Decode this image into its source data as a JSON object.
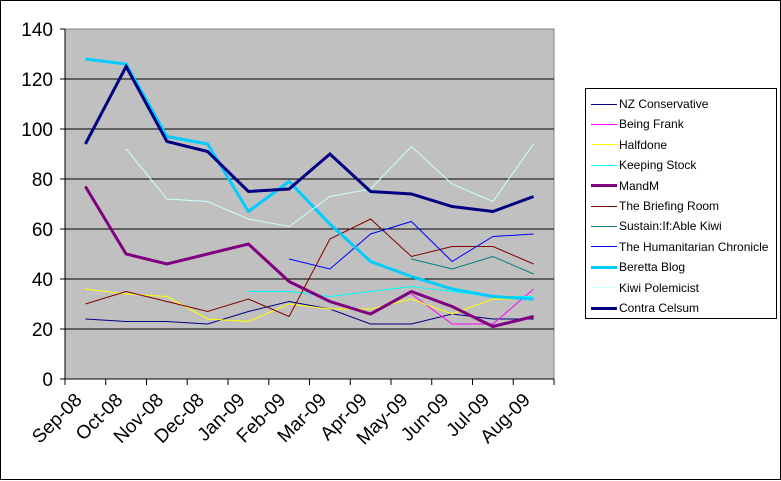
{
  "chart_data": {
    "type": "line",
    "title": "",
    "xlabel": "",
    "ylabel": "",
    "ylim": [
      0,
      140
    ],
    "yticks": [
      0,
      20,
      40,
      60,
      80,
      100,
      120,
      140
    ],
    "grid": true,
    "legend_position": "right",
    "plot_background": "#C0C0C0",
    "categories": [
      "Sep-08",
      "Oct-08",
      "Nov-08",
      "Dec-08",
      "Jan-09",
      "Feb-09",
      "Mar-09",
      "Apr-09",
      "May-09",
      "Jun-09",
      "Jul-09",
      "Aug-09"
    ],
    "series": [
      {
        "name": "NZ Conservative",
        "color": "#000080",
        "width": 1,
        "values": [
          24,
          23,
          23,
          22,
          27,
          31,
          28,
          22,
          22,
          26,
          24,
          24
        ]
      },
      {
        "name": "Being Frank",
        "color": "#FF00FF",
        "width": 1,
        "values": [
          null,
          null,
          null,
          null,
          null,
          null,
          null,
          null,
          34,
          22,
          22,
          36
        ]
      },
      {
        "name": "Halfdone",
        "color": "#FFFF00",
        "width": 1,
        "values": [
          36,
          34,
          33,
          24,
          23,
          30,
          28,
          28,
          32,
          26,
          32,
          32
        ]
      },
      {
        "name": "Keeping Stock",
        "color": "#00FFFF",
        "width": 1,
        "values": [
          null,
          null,
          null,
          null,
          35,
          35,
          33,
          35,
          37,
          35,
          33,
          33
        ]
      },
      {
        "name": "MandM",
        "color": "#800080",
        "width": 3,
        "values": [
          77,
          50,
          46,
          50,
          54,
          39,
          31,
          26,
          35,
          29,
          21,
          25
        ]
      },
      {
        "name": "The Briefing Room",
        "color": "#800000",
        "width": 1,
        "values": [
          30,
          35,
          31,
          27,
          32,
          25,
          56,
          64,
          49,
          53,
          53,
          46
        ]
      },
      {
        "name": "Sustain:If:Able Kiwi",
        "color": "#008080",
        "width": 1,
        "values": [
          null,
          null,
          null,
          null,
          null,
          null,
          null,
          null,
          48,
          44,
          49,
          42
        ]
      },
      {
        "name": "The Humanitarian Chronicle",
        "color": "#0000FF",
        "width": 1,
        "values": [
          null,
          null,
          null,
          null,
          null,
          48,
          44,
          58,
          63,
          47,
          57,
          58
        ]
      },
      {
        "name": "Beretta Blog",
        "color": "#00CCFF",
        "width": 3,
        "values": [
          128,
          126,
          97,
          94,
          67,
          79,
          62,
          47,
          41,
          36,
          33,
          32
        ]
      },
      {
        "name": "Kiwi Polemicist",
        "color": "#CCFFFF",
        "width": 1,
        "values": [
          null,
          92,
          72,
          71,
          64,
          61,
          73,
          76,
          93,
          78,
          71,
          94
        ]
      },
      {
        "name": "Contra Celsum",
        "color": "#000080",
        "width": 3,
        "values": [
          94,
          125,
          95,
          91,
          75,
          76,
          90,
          75,
          74,
          69,
          67,
          73
        ]
      }
    ]
  }
}
